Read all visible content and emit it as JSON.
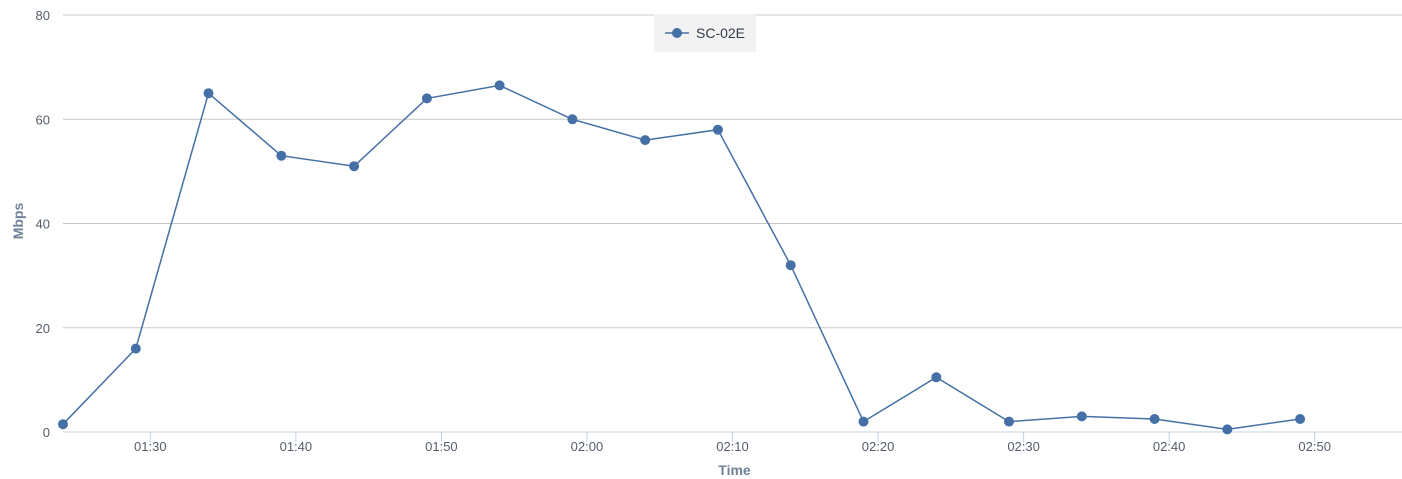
{
  "chart_data": {
    "type": "line",
    "xlabel": "Time",
    "ylabel": "Mbps",
    "ylim": [
      0,
      80
    ],
    "yticks": [
      0,
      20,
      40,
      60,
      80
    ],
    "xlim": [
      "01:24",
      "02:56"
    ],
    "xticks": [
      "01:30",
      "01:40",
      "01:50",
      "02:00",
      "02:10",
      "02:20",
      "02:30",
      "02:40",
      "02:50"
    ],
    "grid": "horizontal",
    "legend_position": "top-center",
    "series": [
      {
        "name": "SC-02E",
        "color": "#4470a6",
        "x": [
          "01:24",
          "01:29",
          "01:34",
          "01:39",
          "01:44",
          "01:49",
          "01:54",
          "01:59",
          "02:04",
          "02:09",
          "02:14",
          "02:19",
          "02:24",
          "02:29",
          "02:34",
          "02:39",
          "02:44",
          "02:49"
        ],
        "values": [
          1.5,
          16,
          65,
          53,
          51,
          64,
          66.5,
          60,
          56,
          58,
          32,
          2,
          10.5,
          2,
          3,
          2.5,
          0.5,
          2.5
        ]
      }
    ]
  }
}
